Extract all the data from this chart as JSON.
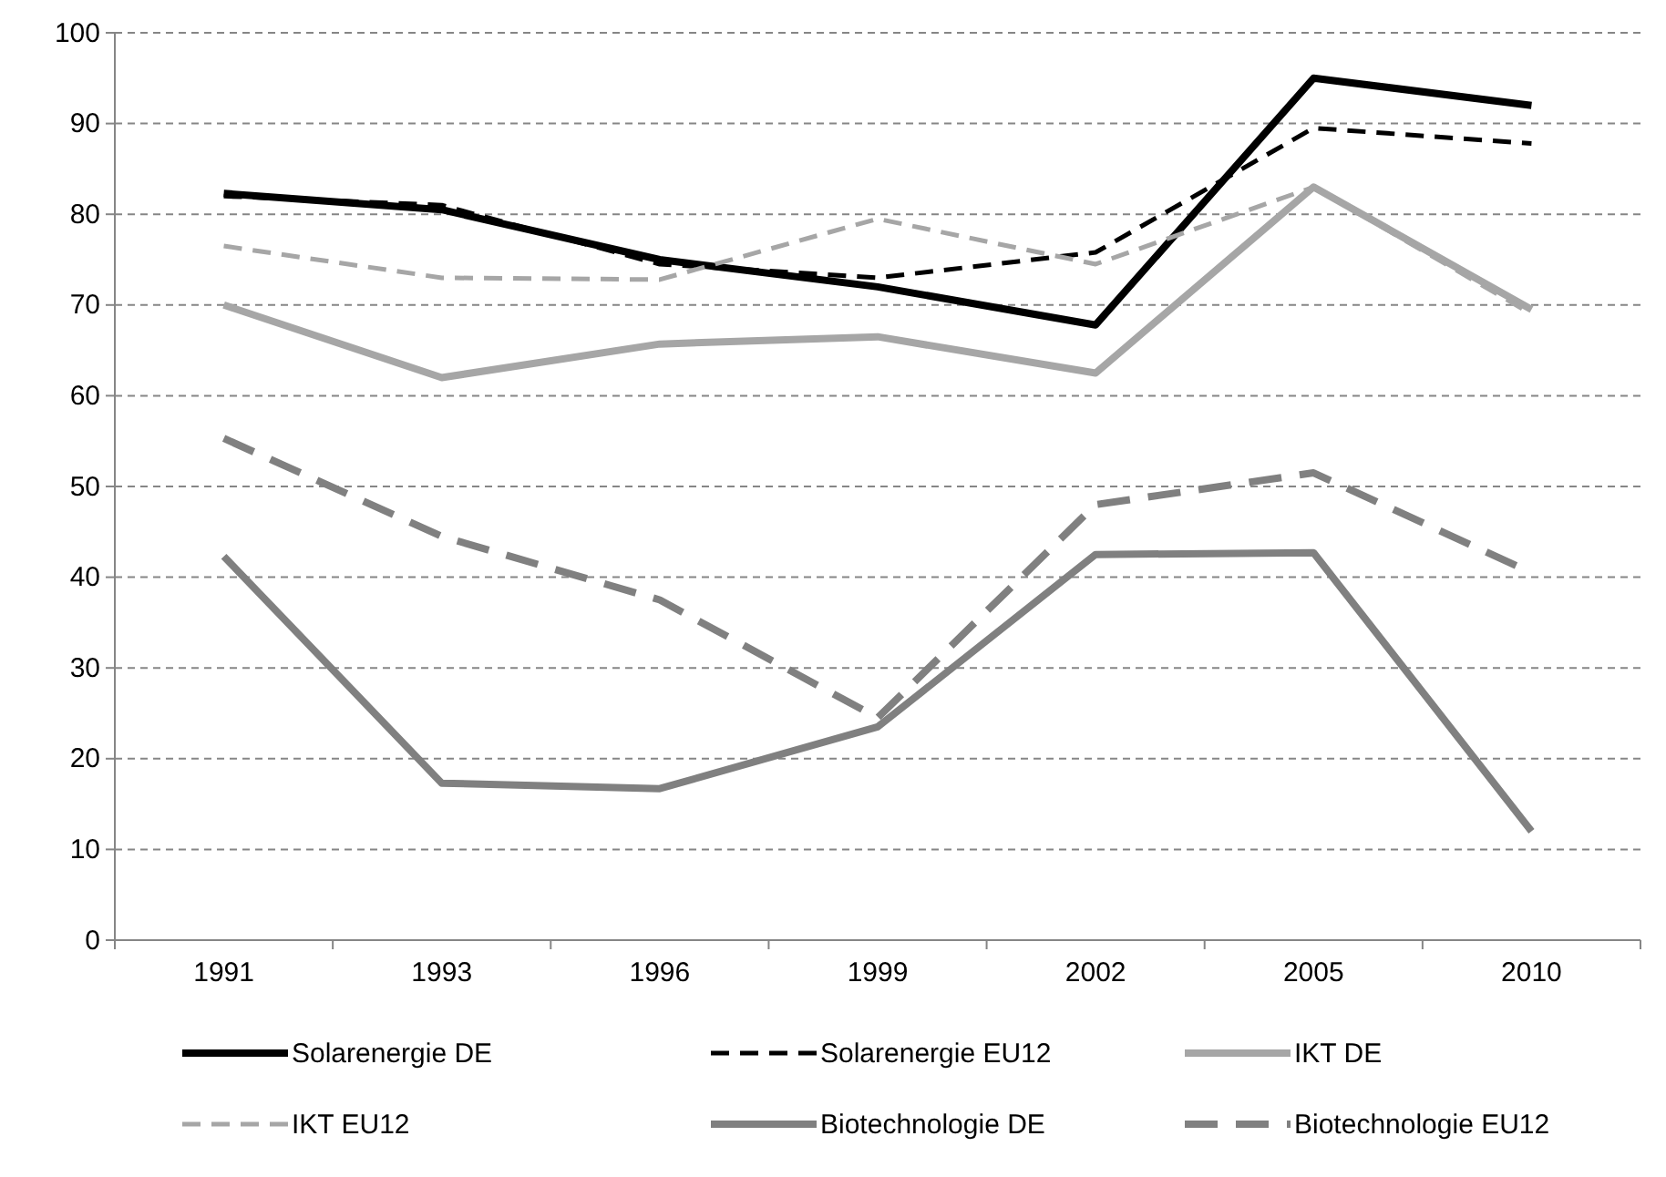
{
  "chart_data": {
    "type": "line",
    "categories": [
      "1991",
      "1993",
      "1996",
      "1999",
      "2002",
      "2005",
      "2010"
    ],
    "ylim": [
      0,
      100
    ],
    "yticks": [
      0,
      10,
      20,
      30,
      40,
      50,
      60,
      70,
      80,
      90,
      100
    ],
    "grid": "y",
    "legend": "bottom",
    "marker": "none",
    "series": [
      {
        "name": "Solarenergie DE",
        "color": "#000000",
        "line_style": "solid",
        "values": [
          82.3,
          80.5,
          75,
          72,
          67.8,
          95,
          92
        ]
      },
      {
        "name": "Solarenergie EU12",
        "color": "#000000",
        "line_style": "dashed",
        "values": [
          82,
          81,
          74.5,
          73,
          75.8,
          89.5,
          87.8
        ]
      },
      {
        "name": "IKT DE",
        "color": "#a6a6a6",
        "line_style": "solid",
        "values": [
          70,
          62,
          65.7,
          66.5,
          62.5,
          83,
          69.5
        ]
      },
      {
        "name": "IKT EU12",
        "color": "#a6a6a6",
        "line_style": "dashed",
        "values": [
          76.5,
          73,
          72.8,
          79.5,
          74.5,
          83,
          69
        ]
      },
      {
        "name": "Biotechnologie DE",
        "color": "#808080",
        "line_style": "solid",
        "values": [
          42.3,
          17.3,
          16.7,
          23.5,
          42.5,
          42.7,
          12
        ]
      },
      {
        "name": "Biotechnologie EU12",
        "color": "#808080",
        "line_style": "dashed",
        "values": [
          55.3,
          44.5,
          37.5,
          24.5,
          48,
          51.5,
          40.5
        ]
      }
    ]
  }
}
